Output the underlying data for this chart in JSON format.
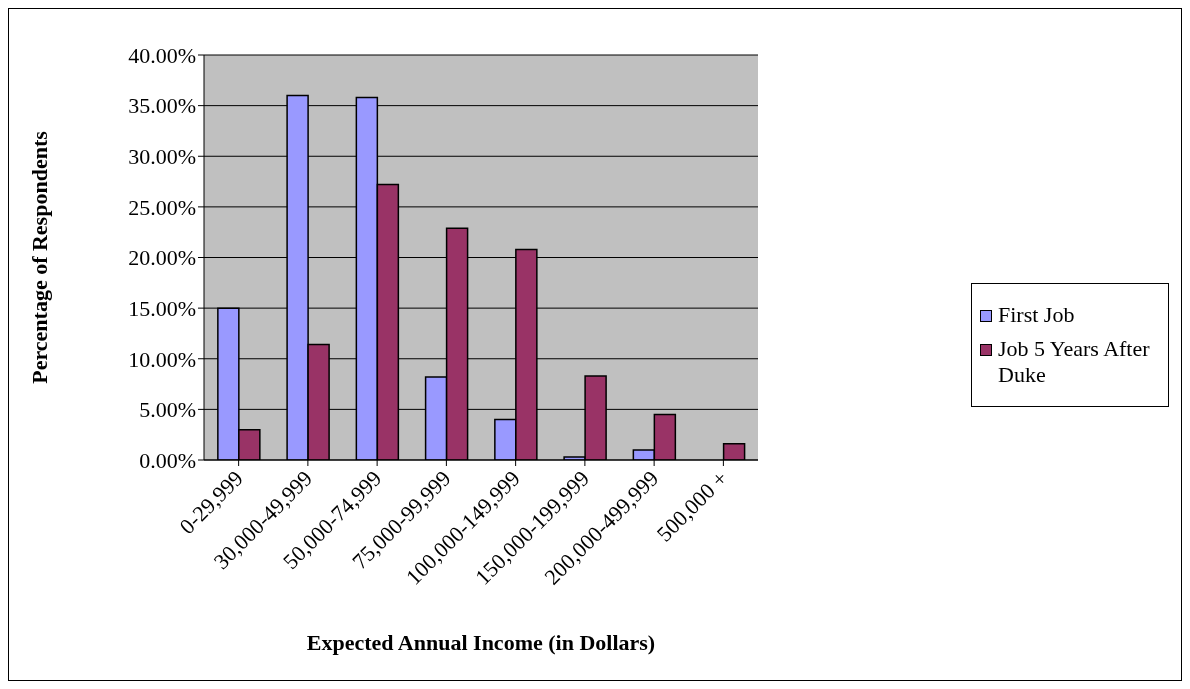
{
  "chart_data": {
    "type": "bar",
    "xlabel": "Expected Annual Income (in Dollars)",
    "ylabel": "Percentage of Respondents",
    "categories": [
      "0-29,999",
      "30,000-49,999",
      "50,000-74,999",
      "75,000-99,999",
      "100,000-149,999",
      "150,000-199,999",
      "200,000-499,999",
      "500,000 +"
    ],
    "series": [
      {
        "name": "First Job",
        "color": "#9999ff",
        "values": [
          15.0,
          36.0,
          35.8,
          8.2,
          4.0,
          0.3,
          1.0,
          0
        ]
      },
      {
        "name": "Job 5 Years After Duke",
        "color": "#993366",
        "values": [
          3.0,
          11.4,
          27.2,
          22.9,
          20.8,
          8.3,
          4.5,
          1.6
        ]
      }
    ],
    "ylim": [
      0,
      40
    ],
    "yticks": [
      {
        "value": 0,
        "label": "0.00%"
      },
      {
        "value": 5,
        "label": "5.00%"
      },
      {
        "value": 10,
        "label": "10.00%"
      },
      {
        "value": 15,
        "label": "15.00%"
      },
      {
        "value": 20,
        "label": "20.00%"
      },
      {
        "value": 25,
        "label": "25.00%"
      },
      {
        "value": 30,
        "label": "30.00%"
      },
      {
        "value": 35,
        "label": "35.00%"
      },
      {
        "value": 40,
        "label": "40.00%"
      }
    ],
    "grid": "y",
    "legend": "right"
  }
}
